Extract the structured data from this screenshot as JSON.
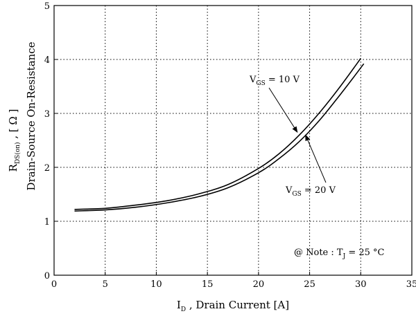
{
  "chart_data": {
    "type": "line",
    "title": "",
    "xlabel": {
      "main": "I",
      "sub": "D",
      "rest": " , Drain Current  [A]"
    },
    "ylabel": {
      "main": "R",
      "sub": "DS(on)",
      "rest": "  ,  [ Ω ]",
      "line2": "Drain-Source On-Resistance"
    },
    "xlim": [
      0,
      35
    ],
    "ylim": [
      0,
      5
    ],
    "xticks": [
      "0",
      "5",
      "10",
      "15",
      "20",
      "25",
      "30",
      "35"
    ],
    "yticks": [
      "0",
      "1",
      "2",
      "3",
      "4",
      "5"
    ],
    "grid": true,
    "series": [
      {
        "x": [
          2,
          5,
          8,
          11,
          14,
          17,
          20,
          22,
          24,
          26,
          28,
          30
        ],
        "y": [
          1.22,
          1.24,
          1.3,
          1.38,
          1.5,
          1.68,
          1.98,
          2.25,
          2.6,
          3.02,
          3.5,
          4.02
        ]
      },
      {
        "x": [
          2,
          5,
          8,
          11,
          14,
          17,
          20,
          22,
          24,
          26,
          28,
          30.3
        ],
        "y": [
          1.19,
          1.21,
          1.26,
          1.34,
          1.45,
          1.62,
          1.9,
          2.16,
          2.48,
          2.88,
          3.35,
          3.92
        ]
      }
    ],
    "annotations": [
      {
        "main": "V",
        "sub": "GS",
        "rest": " = 10 V",
        "pointer_x": 23.8,
        "pointer_y": 2.65
      },
      {
        "main": "V",
        "sub": "GS",
        "rest": " = 20 V",
        "pointer_x": 24.6,
        "pointer_y": 2.6
      },
      {
        "main": "@ Note : T",
        "sub": "J",
        "rest": " = 25 °C"
      }
    ],
    "colors": {
      "line": "#000000",
      "grid": "#000000",
      "background": "#ffffff"
    }
  }
}
